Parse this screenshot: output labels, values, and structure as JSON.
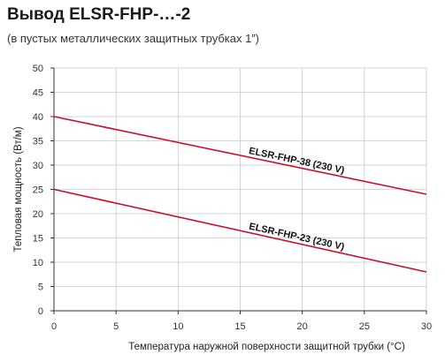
{
  "header": {
    "title": "Вывод ELSR-FHP-…-2",
    "subtitle": "(в пустых металлических защитных трубках 1”)"
  },
  "chart_data": {
    "type": "line",
    "title": "Вывод ELSR-FHP-…-2",
    "subtitle": "(в пустых металлических защитных трубках 1”)",
    "xlabel": "Температура наружной поверхности защитной трубки (°C)",
    "ylabel": "Тепловая мощность (Вт/м)",
    "xlim": [
      0,
      30
    ],
    "ylim": [
      0,
      50
    ],
    "xticks": [
      0,
      5,
      10,
      15,
      20,
      25,
      30
    ],
    "yticks": [
      0,
      5,
      10,
      15,
      20,
      25,
      30,
      35,
      40,
      45,
      50
    ],
    "grid": true,
    "line_color": "#c8102e",
    "series": [
      {
        "name": "ELSR-FHP-38 (230 V)",
        "x": [
          0,
          30
        ],
        "y": [
          40,
          24
        ]
      },
      {
        "name": "ELSR-FHP-23 (230 V)",
        "x": [
          0,
          30
        ],
        "y": [
          25,
          8
        ]
      }
    ]
  }
}
